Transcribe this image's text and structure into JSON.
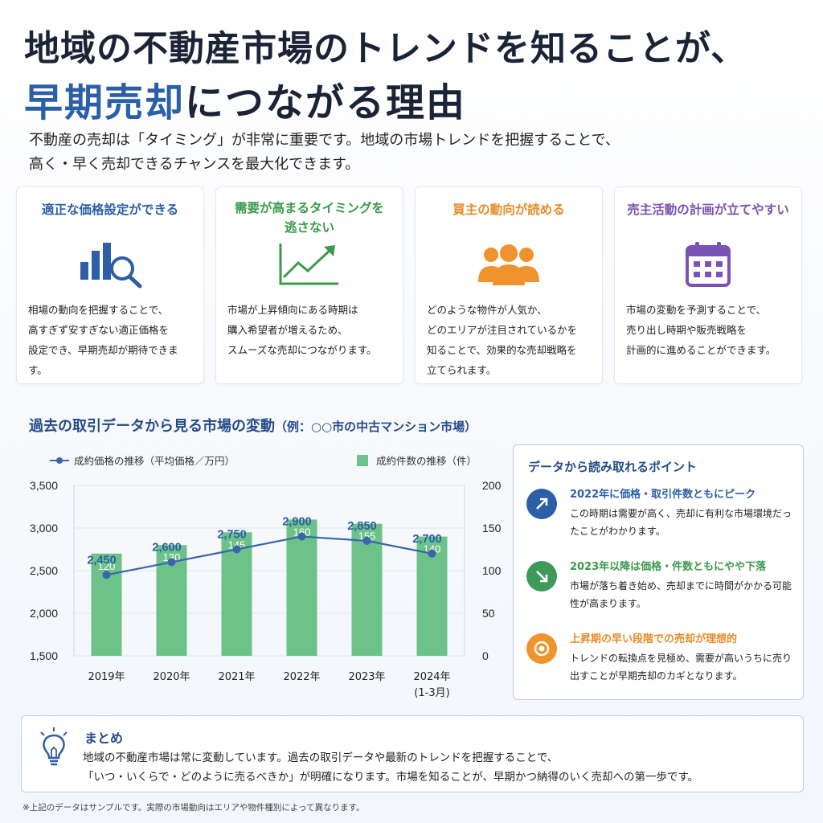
{
  "header": {
    "title_line1": "地域の不動産市場のトレンドを知ることが、",
    "title_line2_accent": "早期売却",
    "title_line2_rest": "につながる理由",
    "lead_line1": "不動産の売却は「タイミング」が非常に重要です。地域の市場トレンドを把握することで、",
    "lead_line2": "高く・早く売却できるチャンスを最大化できます。"
  },
  "cards": [
    {
      "title": "適正な価格設定ができる",
      "title_color": "#2b5fa8",
      "icon": "bar-chart-magnifier-icon",
      "body": [
        "相場の動向を把握することで、",
        "高すぎず安すぎない適正価格を",
        "設定でき、早期売却が期待できます。"
      ]
    },
    {
      "title_line1": "需要が高まるタイミングを",
      "title_line2": "逃さない",
      "title_color": "#3a9a4a",
      "icon": "trend-up-arrow-icon",
      "body": [
        "市場が上昇傾向にある時期は",
        "購入希望者が増えるため、",
        "スムーズな売却につながります。"
      ]
    },
    {
      "title": "買主の動向が読める",
      "title_color": "#e98a26",
      "icon": "people-group-icon",
      "body": [
        "どのような物件が人気か、",
        "どのエリアが注目されているかを",
        "知ることで、効果的な売却戦略を",
        "立てられます。"
      ]
    },
    {
      "title": "売主活動の計画が立てやすい",
      "title_color": "#7b52b5",
      "icon": "calendar-icon",
      "body": [
        "市場の変動を予測することで、",
        "売り出し時期や販売戦略を",
        "計画的に進めることができます。"
      ]
    }
  ],
  "section": {
    "title": "過去の取引データから見る市場の変動",
    "subtitle": "（例：○○市の中古マンション市場）"
  },
  "chart_data": {
    "type": "bar+line",
    "categories": [
      "2019年",
      "2020年",
      "2021年",
      "2022年",
      "2023年",
      "2024年"
    ],
    "category_notes": [
      "",
      "",
      "",
      "",
      "",
      "(1-3月)"
    ],
    "series": [
      {
        "name": "成約価格の推移（平均価格／万円）",
        "type": "line",
        "axis": "left",
        "color": "#3a65ad",
        "values": [
          2450,
          2600,
          2750,
          2900,
          2850,
          2700
        ],
        "labels": [
          "2,450",
          "2,600",
          "2,750",
          "2,900",
          "2,850",
          "2,700"
        ]
      },
      {
        "name": "成約件数の推移（件）",
        "type": "bar",
        "axis": "right",
        "color": "#6cc288",
        "values": [
          120,
          130,
          145,
          160,
          155,
          140
        ]
      }
    ],
    "y_left": {
      "min": 1500,
      "max": 3500,
      "ticks": [
        "1,500",
        "2,000",
        "2,500",
        "3,000",
        "3,500"
      ]
    },
    "y_right": {
      "min": 0,
      "max": 200,
      "ticks": [
        "0",
        "50",
        "100",
        "150",
        "200"
      ]
    },
    "grid": true,
    "legend": "top"
  },
  "points": {
    "title": "データから読み取れるポイント",
    "items": [
      {
        "head": "2022年に価格・取引件数ともにピーク",
        "head_color": "#2b5fa8",
        "icon": "arrow-up-right-icon",
        "icon_color": "#2d5fa6",
        "body": "この時期は需要が高く、売却に有利な市場環境だったことがわかります。"
      },
      {
        "head": "2023年以降は価格・件数ともにやや下落",
        "head_color": "#3a9a4a",
        "icon": "arrow-down-right-icon",
        "icon_color": "#3f9a5a",
        "body": "市場が落ち着き始め、売却までに時間がかかる可能性が高まります。"
      },
      {
        "head": "上昇期の早い段階での売却が理想的",
        "head_color": "#e98a26",
        "icon": "target-icon",
        "icon_color": "#f0922e",
        "body": "トレンドの転換点を見極め、需要が高いうちに売り出すことが早期売却のカギとなります。"
      }
    ]
  },
  "summary": {
    "title": "まとめ",
    "line1": "地域の不動産市場は常に変動しています。過去の取引データや最新のトレンドを把握することで、",
    "line2": "「いつ・いくらで・どのように売るべきか」が明確になります。市場を知ることが、早期かつ納得のいく売却への第一歩です。",
    "icon": "lightbulb-icon"
  },
  "footnote": "※上記のデータはサンプルです。実際の市場動向はエリアや物件種別によって異なります。"
}
